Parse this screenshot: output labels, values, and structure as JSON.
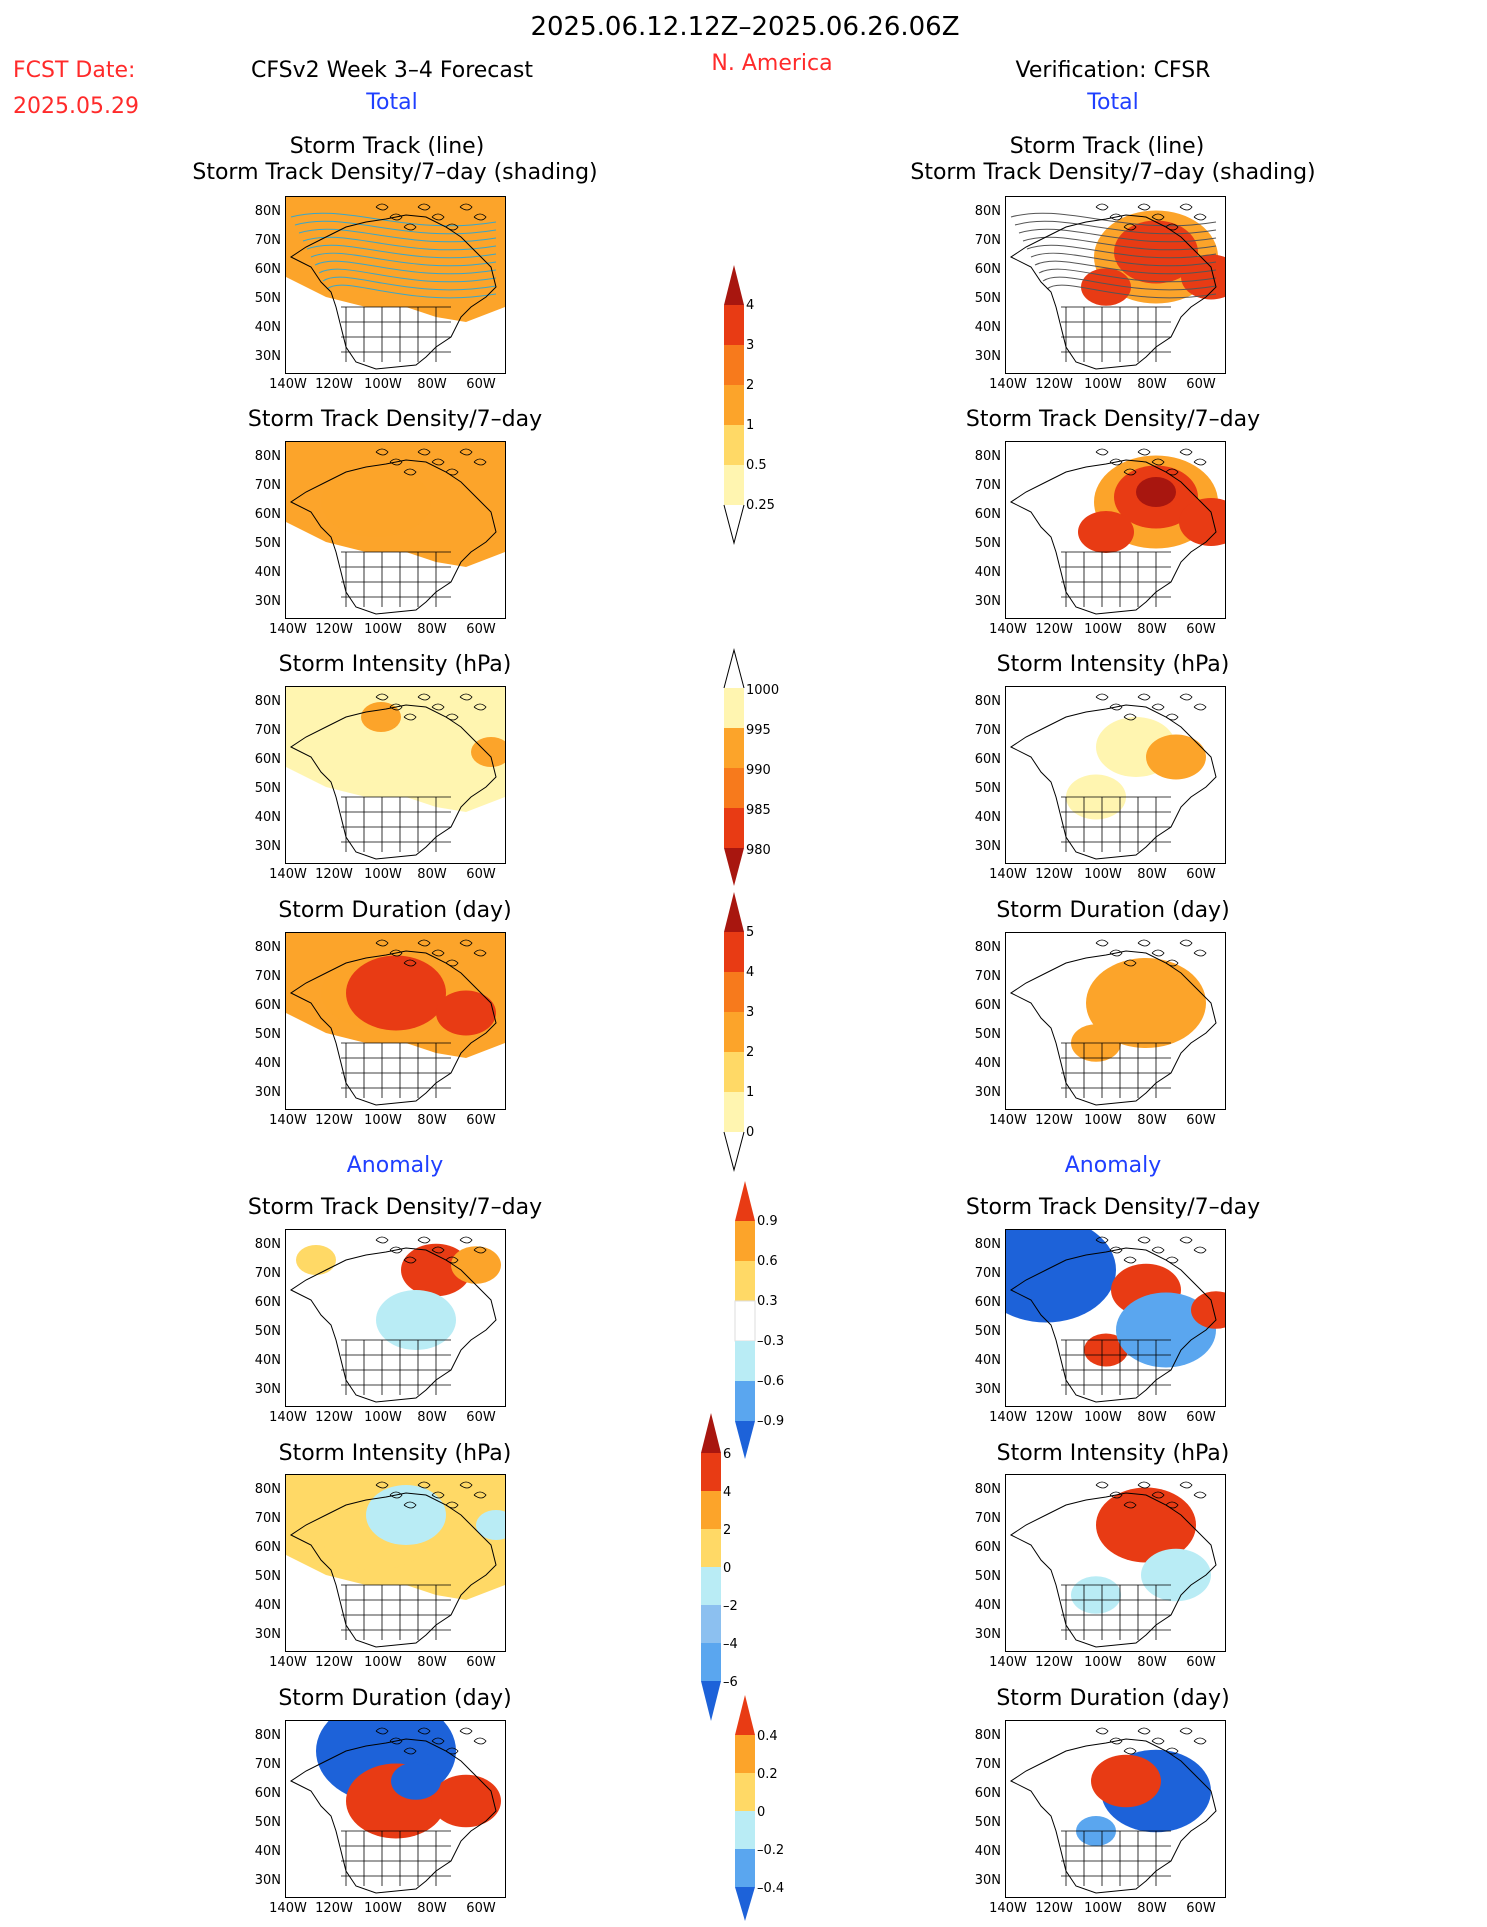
{
  "header": {
    "period": "2025.06.12.12Z–2025.06.26.06Z",
    "region": "N. America",
    "fcst_label": "FCST Date:",
    "fcst_date": "2025.05.29",
    "left_title": "CFSv2 Week 3–4 Forecast",
    "right_title": "Verification: CFSR",
    "total_label": "Total",
    "anomaly_label": "Anomaly"
  },
  "panel_titles": {
    "track_line": "Storm Track (line)",
    "track_shading": "Storm Track Density/7–day (shading)",
    "density": "Storm Track Density/7–day",
    "intensity": "Storm Intensity (hPa)",
    "duration": "Storm Duration (day)"
  },
  "axes": {
    "lat_labels": [
      "80N",
      "70N",
      "60N",
      "50N",
      "40N",
      "30N"
    ],
    "lon_labels": [
      "140W",
      "120W",
      "100W",
      "80W",
      "60W"
    ]
  },
  "colorbars": {
    "density_total": [
      "4",
      "3",
      "2",
      "1",
      "0.5",
      "0.25"
    ],
    "intensity_total": [
      "1000",
      "995",
      "990",
      "985",
      "980"
    ],
    "duration_total": [
      "5",
      "4",
      "3",
      "2",
      "1",
      "0"
    ],
    "density_anom": [
      "0.9",
      "0.6",
      "0.3",
      "–0.3",
      "–0.6",
      "–0.9"
    ],
    "intensity_anom": [
      "6",
      "4",
      "2",
      "0",
      "–2",
      "–4",
      "–6"
    ],
    "duration_anom": [
      "0.4",
      "0.2",
      "0",
      "–0.2",
      "–0.4"
    ]
  },
  "colors": {
    "red_text": "#ff2a2a",
    "blue_text": "#1f3fff",
    "light_yellow": "#fff5b0",
    "yellow": "#ffd966",
    "orange": "#fca42a",
    "dark_orange": "#f77a1c",
    "red": "#e83b14",
    "dark_red": "#a8160f",
    "light_blue": "#b9ecf5",
    "blue": "#5aa6ef",
    "dark_blue": "#1d62d9"
  }
}
